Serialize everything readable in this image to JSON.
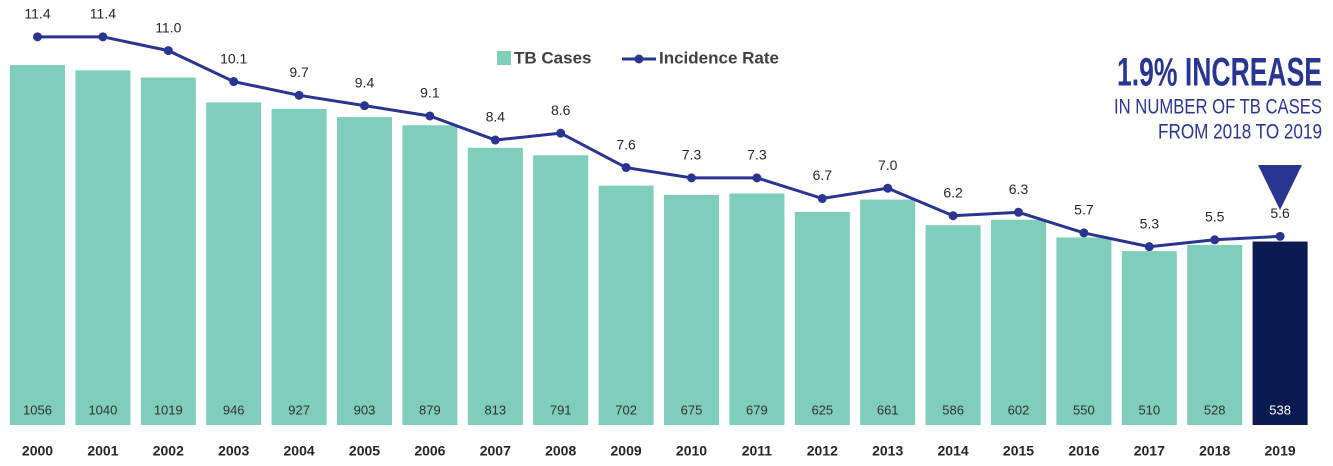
{
  "chart_data": {
    "type": "bar_line",
    "categories": [
      "2000",
      "2001",
      "2002",
      "2003",
      "2004",
      "2005",
      "2006",
      "2007",
      "2008",
      "2009",
      "2010",
      "2011",
      "2012",
      "2013",
      "2014",
      "2015",
      "2016",
      "2017",
      "2018",
      "2019"
    ],
    "series": [
      {
        "name": "TB Cases",
        "color": "#7fcdbb",
        "colors": [
          "#7fcdbb",
          "#7fcdbb",
          "#7fcdbb",
          "#7fcdbb",
          "#7fcdbb",
          "#7fcdbb",
          "#7fcdbb",
          "#7fcdbb",
          "#7fcdbb",
          "#7fcdbb",
          "#7fcdbb",
          "#7fcdbb",
          "#7fcdbb",
          "#7fcdbb",
          "#7fcdbb",
          "#7fcdbb",
          "#7fcdbb",
          "#7fcdbb",
          "#7fcdbb",
          "#0c1a52"
        ],
        "values": [
          1056,
          1040,
          1019,
          946,
          927,
          903,
          879,
          813,
          791,
          702,
          675,
          679,
          625,
          661,
          586,
          602,
          550,
          510,
          528,
          538
        ]
      },
      {
        "name": "Incidence Rate",
        "color": "#2a3591",
        "axis": "y2",
        "values": [
          11.4,
          11.4,
          11.0,
          10.1,
          9.7,
          9.4,
          9.1,
          8.4,
          8.6,
          7.6,
          7.3,
          7.3,
          6.7,
          7.0,
          6.2,
          6.3,
          5.7,
          5.3,
          5.5,
          5.6
        ],
        "value_labels": [
          "11.4",
          "11.4",
          "11.0",
          "10.1",
          "9.7",
          "9.4",
          "9.1",
          "8.4",
          "8.6",
          "7.6",
          "7.3",
          "7.3",
          "6.7",
          "7.0",
          "6.2",
          "6.3",
          "5.7",
          "5.3",
          "5.5",
          "5.6"
        ]
      }
    ],
    "annotation": [
      "1.9% INCREASE",
      "IN NUMBER OF TB CASES",
      "FROM 2018 TO 2019"
    ],
    "annotation_color": "#2a3591"
  }
}
